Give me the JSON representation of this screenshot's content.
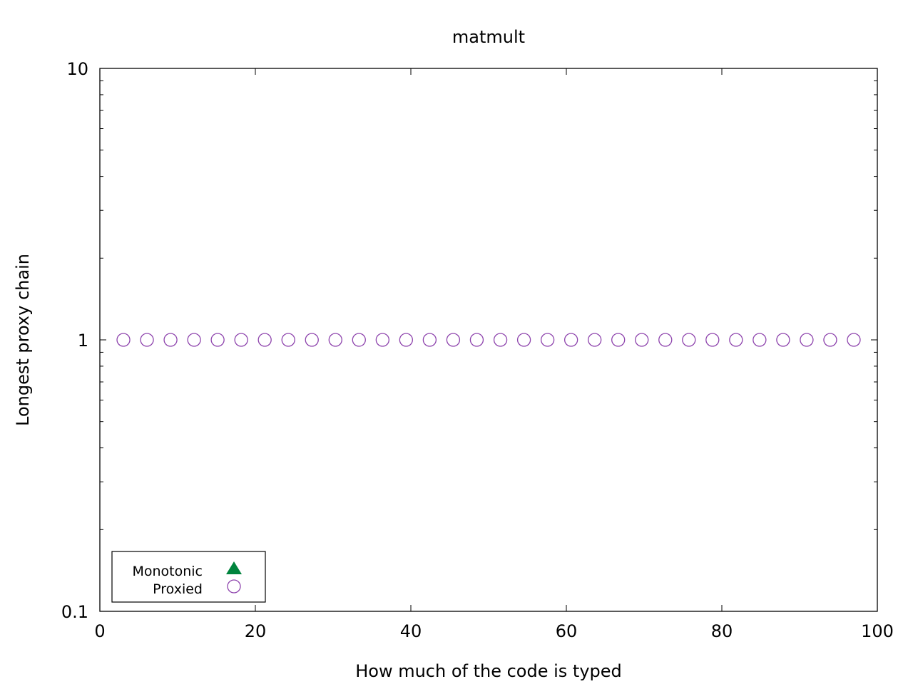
{
  "chart_data": {
    "type": "scatter",
    "title": "matmult",
    "xlabel": "How much of the code is typed",
    "ylabel": "Longest proxy chain",
    "xlim": [
      0,
      100
    ],
    "ylim": [
      0.1,
      10
    ],
    "yscale": "log",
    "xticks": [
      {
        "value": 0,
        "label": "0"
      },
      {
        "value": 20,
        "label": "20"
      },
      {
        "value": 40,
        "label": "40"
      },
      {
        "value": 60,
        "label": "60"
      },
      {
        "value": 80,
        "label": "80"
      },
      {
        "value": 100,
        "label": "100"
      }
    ],
    "yticks": [
      {
        "value": 0.1,
        "label": "0.1"
      },
      {
        "value": 1,
        "label": "1"
      },
      {
        "value": 10,
        "label": "10"
      }
    ],
    "grid": false,
    "legend_position": "bottom-left",
    "series": [
      {
        "name": "Monotonic",
        "marker": "filled-triangle",
        "color": "#00843d",
        "x": [],
        "y": []
      },
      {
        "name": "Proxied",
        "marker": "open-circle",
        "color": "#8e44ad",
        "x": [
          3.03,
          6.06,
          9.09,
          12.12,
          15.15,
          18.18,
          21.21,
          24.24,
          27.27,
          30.3,
          33.33,
          36.36,
          39.39,
          42.42,
          45.45,
          48.48,
          51.52,
          54.55,
          57.58,
          60.61,
          63.64,
          66.67,
          69.7,
          72.73,
          75.76,
          78.79,
          81.82,
          84.85,
          87.88,
          90.91,
          93.94,
          96.97
        ],
        "y": [
          1,
          1,
          1,
          1,
          1,
          1,
          1,
          1,
          1,
          1,
          1,
          1,
          1,
          1,
          1,
          1,
          1,
          1,
          1,
          1,
          1,
          1,
          1,
          1,
          1,
          1,
          1,
          1,
          1,
          1,
          1,
          1
        ]
      }
    ]
  }
}
